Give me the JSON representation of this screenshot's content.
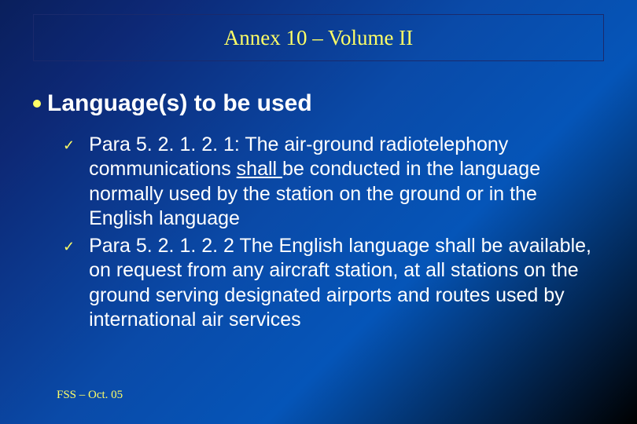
{
  "colors": {
    "accent": "#ffff66",
    "text": "#ffffff",
    "gradient_start": "#0a1f5c",
    "gradient_mid": "#0a4aa8",
    "gradient_end": "#000000",
    "border": "#1a2a6c"
  },
  "typography": {
    "title_font": "Times New Roman",
    "title_size_pt": 20,
    "heading_font": "Arial",
    "heading_size_pt": 23,
    "heading_weight": "bold",
    "body_font": "Arial",
    "body_size_pt": 19,
    "footer_font": "Times New Roman",
    "footer_size_pt": 11
  },
  "title": "Annex 10 – Volume II",
  "heading": "Language(s) to be used",
  "items": [
    {
      "para_ref": "Para 5. 2. 1. 2. 1: ",
      "body_pre": "The air-ground radiotelephony communications ",
      "underlined": "shall ",
      "body_post": "be conducted in the language normally used by the station on the ground or in the English language"
    },
    {
      "para_ref": "Para 5. 2. 1. 2. 2 ",
      "body_pre": "The English language shall be available, on request from any aircraft station, at all stations on the ground serving designated airports and routes used by international air services",
      "underlined": "",
      "body_post": ""
    }
  ],
  "footer": "FSS – Oct. 05"
}
